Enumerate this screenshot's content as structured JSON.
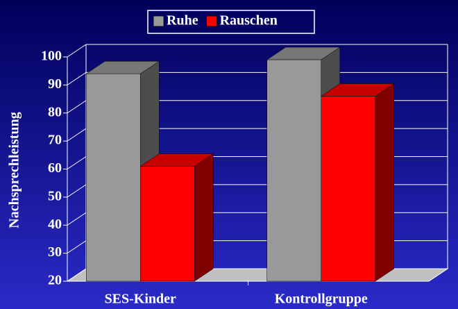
{
  "chart_data": {
    "type": "bar3d",
    "y_label": "Nachsprechleistung",
    "categories": [
      "SES-Kinder",
      "Kontrollgruppe"
    ],
    "series": [
      {
        "name": "Ruhe",
        "color": "#999999",
        "values": [
          94,
          99
        ]
      },
      {
        "name": "Rauschen",
        "color": "#ff0000",
        "values": [
          61,
          86
        ]
      }
    ],
    "ylim": [
      20,
      100
    ],
    "yticks": [
      20,
      30,
      40,
      50,
      60,
      70,
      80,
      90,
      100
    ],
    "grid": true,
    "legend": "top"
  }
}
